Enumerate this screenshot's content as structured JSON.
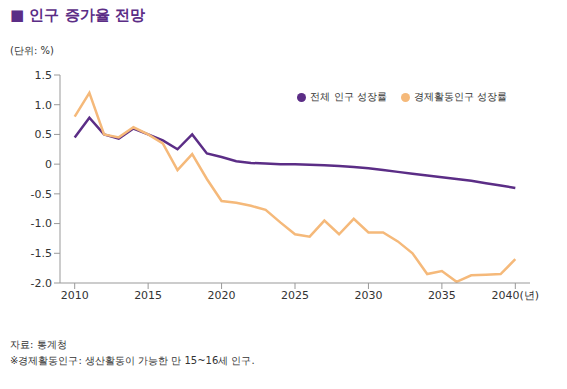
{
  "chart_data": {
    "type": "line",
    "title": "■ 인구 증가율 전망",
    "subtitle": "(단위: %)",
    "source": "자료: 통계청",
    "note": "※경제활동인구: 생산활동이 가능한 만 15~16세 인구.",
    "x": [
      2010,
      2011,
      2012,
      2013,
      2014,
      2015,
      2016,
      2017,
      2018,
      2019,
      2020,
      2021,
      2022,
      2023,
      2024,
      2025,
      2026,
      2027,
      2028,
      2029,
      2030,
      2031,
      2032,
      2033,
      2034,
      2035,
      2036,
      2037,
      2038,
      2039,
      2040
    ],
    "series": [
      {
        "name": "전체 인구 성장률",
        "color": "#5b2d86",
        "values": [
          0.45,
          0.78,
          0.5,
          0.43,
          0.6,
          0.5,
          0.4,
          0.25,
          0.5,
          0.18,
          0.12,
          0.05,
          0.02,
          0.01,
          0.0,
          0.0,
          -0.01,
          -0.02,
          -0.03,
          -0.05,
          -0.07,
          -0.1,
          -0.13,
          -0.16,
          -0.19,
          -0.22,
          -0.25,
          -0.28,
          -0.32,
          -0.36,
          -0.4
        ]
      },
      {
        "name": "경제활동인구 성장률",
        "color": "#f5b97a",
        "values": [
          0.8,
          1.2,
          0.5,
          0.45,
          0.62,
          0.5,
          0.35,
          -0.1,
          0.17,
          -0.25,
          -0.62,
          -0.65,
          -0.7,
          -0.77,
          -0.98,
          -1.18,
          -1.22,
          -0.95,
          -1.18,
          -0.92,
          -1.15,
          -1.15,
          -1.3,
          -1.5,
          -1.85,
          -1.8,
          -1.98,
          -1.87,
          -1.86,
          -1.85,
          -1.6
        ]
      }
    ],
    "xlim": [
      2009,
      2041
    ],
    "xticks": [
      2010,
      2015,
      2020,
      2025,
      2030,
      2035,
      {
        "value": 2040,
        "label": "2040(년)"
      }
    ],
    "ylim": [
      -2.0,
      1.5
    ],
    "yticks": [
      {
        "value": -2.0,
        "label": "-2.0"
      },
      {
        "value": -1.5,
        "label": "-1.5"
      },
      {
        "value": -1.0,
        "label": "-1.0"
      },
      {
        "value": -0.5,
        "label": "-0.5"
      },
      0,
      {
        "value": 0.5,
        "label": "0.5"
      },
      {
        "value": 1.0,
        "label": "1.0"
      },
      {
        "value": 1.5,
        "label": "1.5"
      }
    ],
    "grid": false,
    "legend": "upper right"
  }
}
